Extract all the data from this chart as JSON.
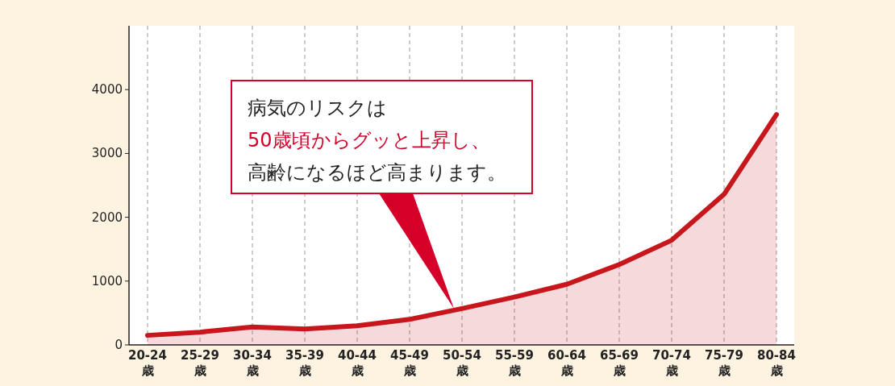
{
  "chart_data": {
    "type": "area",
    "categories": [
      "20-24\n歳",
      "25-29\n歳",
      "30-34\n歳",
      "35-39\n歳",
      "40-44\n歳",
      "45-49\n歳",
      "50-54\n歳",
      "55-59\n歳",
      "60-64\n歳",
      "65-69\n歳",
      "70-74\n歳",
      "75-79\n歳",
      "80-84\n歳"
    ],
    "series": [
      {
        "color": "#c8161d",
        "values": [
          150,
          200,
          280,
          250,
          300,
          400,
          570,
          750,
          950,
          1260,
          1640,
          2360,
          3610
        ]
      }
    ],
    "ylim": [
      0,
      5000
    ],
    "yticks": [
      0,
      1000,
      2000,
      3000,
      4000
    ],
    "grid": "x",
    "annotations": [
      "病気のリスクは",
      "50歳頃からグッと上昇し、",
      "高齢になるほど高まります。"
    ]
  }
}
